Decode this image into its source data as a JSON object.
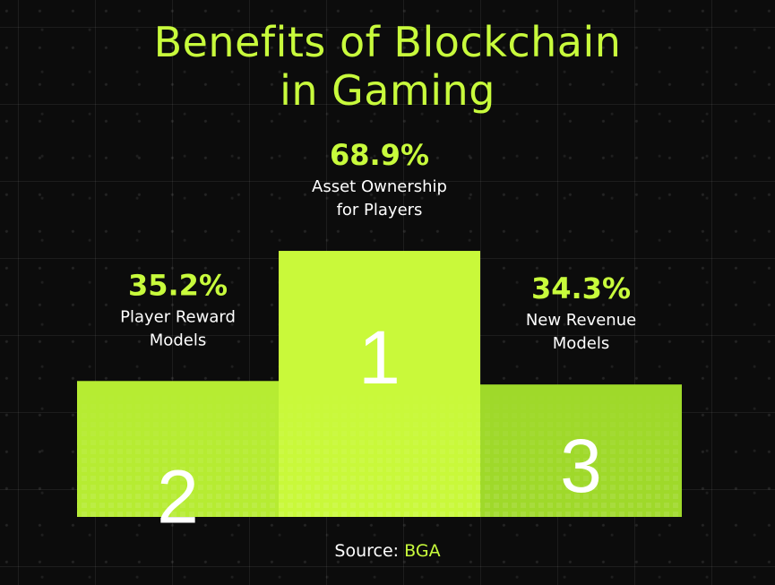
{
  "title": {
    "line1": "Benefits of Blockchain",
    "line2": "in Gaming"
  },
  "colors": {
    "background": "#0c0c0c",
    "accent": "#c8fb3c",
    "bar_center": "#c9f93a",
    "bar_left": "#b6ec32",
    "bar_right": "#9fd92a",
    "text": "#ffffff"
  },
  "chart_data": {
    "type": "bar",
    "title": "Benefits of Blockchain in Gaming",
    "categories": [
      "Player Reward Models",
      "Asset Ownership for Players",
      "New Revenue Models"
    ],
    "values": [
      35.2,
      68.9,
      34.3
    ],
    "value_labels": [
      "35.2%",
      "68.9%",
      "34.3%"
    ],
    "label_lines": [
      [
        "Player Reward",
        "Models"
      ],
      [
        "Asset Ownership",
        "for Players"
      ],
      [
        "New Revenue",
        "Models"
      ]
    ],
    "ranks": [
      "2",
      "1",
      "3"
    ],
    "ylabel": "",
    "xlabel": "",
    "grid": false
  },
  "source": {
    "prefix": "Source:",
    "name": "BGA"
  }
}
